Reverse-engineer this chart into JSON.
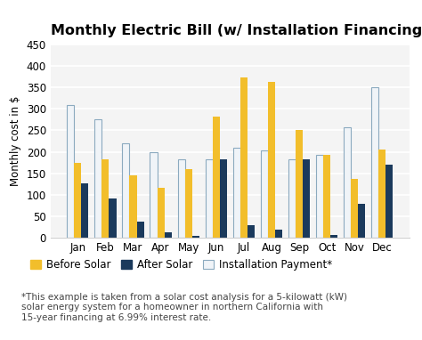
{
  "title": "Monthly Electric Bill (w/ Installation Financing)",
  "ylabel": "Monthly cost in $",
  "months": [
    "Jan",
    "Feb",
    "Mar",
    "Apr",
    "May",
    "Jun",
    "Jul",
    "Aug",
    "Sep",
    "Oct",
    "Nov",
    "Dec"
  ],
  "before_solar": [
    175,
    183,
    145,
    117,
    160,
    282,
    372,
    363,
    250,
    192,
    138,
    205
  ],
  "after_solar": [
    127,
    92,
    37,
    14,
    5,
    183,
    30,
    20,
    183,
    7,
    79,
    170
  ],
  "installation_payment": [
    308,
    275,
    220,
    200,
    183,
    183,
    210,
    203,
    183,
    192,
    258,
    350
  ],
  "color_before": "#F2BE2B",
  "color_after": "#1B3A5C",
  "color_install_face": "#F0F4F8",
  "color_install_edge": "#8BAABF",
  "ylim": [
    0,
    450
  ],
  "yticks": [
    0,
    50,
    100,
    150,
    200,
    250,
    300,
    350,
    400,
    450
  ],
  "legend_labels": [
    "Before Solar",
    "After Solar",
    "Installation Payment*"
  ],
  "footnote": "*This example is taken from a solar cost analysis for a 5-kilowatt (kW)\nsolar energy system for a homeowner in northern California with\n15-year financing at 6.99% interest rate.",
  "background_color": "#F4F4F4",
  "title_fontsize": 11.5,
  "axis_fontsize": 8.5,
  "legend_fontsize": 8.5,
  "footnote_fontsize": 7.5,
  "bar_width": 0.26
}
